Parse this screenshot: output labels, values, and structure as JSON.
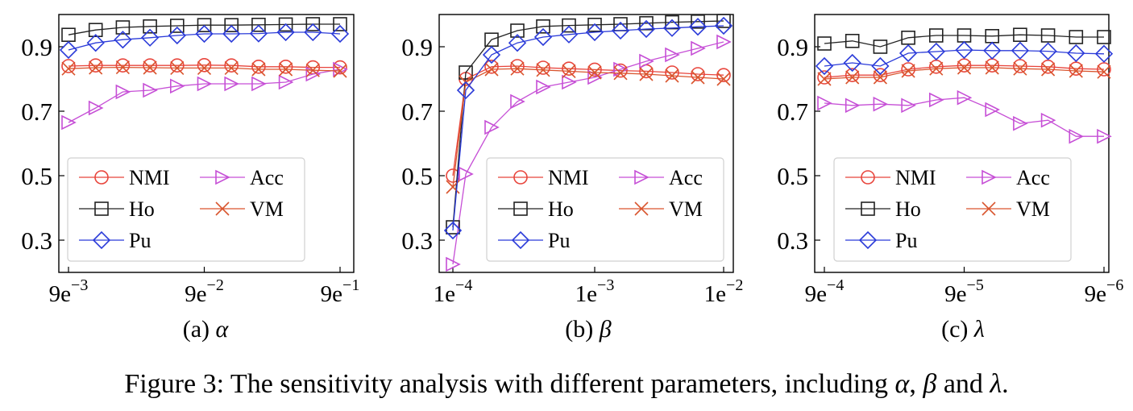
{
  "figure_caption": {
    "prefix": "Figure 3: The sensitivity analysis with different parameters, including ",
    "symbols": [
      "α",
      "β",
      "λ"
    ],
    "sep1": ", ",
    "sep2": " and ",
    "suffix": "."
  },
  "subplots": [
    {
      "label": "(a) ",
      "symbol": "α"
    },
    {
      "label": "(b) ",
      "symbol": "β"
    },
    {
      "label": "(c) ",
      "symbol": "λ"
    }
  ],
  "colors": {
    "NMI": "#e8453c",
    "Acc": "#c64fd6",
    "Ho": "#222222",
    "VM": "#d9552e",
    "Pu": "#2b3bd9"
  },
  "chart_data": [
    {
      "type": "line",
      "xticks": [
        {
          "base": "9e",
          "exp": "−3"
        },
        {
          "base": "9e",
          "exp": "−2"
        },
        {
          "base": "9e",
          "exp": "−1"
        }
      ],
      "xtick_index": [
        0,
        5,
        10
      ],
      "x": [
        0,
        1,
        2,
        3,
        4,
        5,
        6,
        7,
        8,
        9,
        10
      ],
      "ylim": [
        0.2,
        1.0
      ],
      "yticks": [
        "0.3",
        "0.5",
        "0.7",
        "0.9"
      ],
      "ytick_values": [
        0.3,
        0.5,
        0.7,
        0.9
      ],
      "legend": [
        [
          "NMI",
          "Acc"
        ],
        [
          "Ho",
          "VM"
        ],
        [
          "Pu"
        ]
      ],
      "legend_placement": "lower-left",
      "series": [
        {
          "name": "NMI",
          "marker": "circle",
          "values": [
            0.84,
            0.842,
            0.842,
            0.842,
            0.842,
            0.843,
            0.842,
            0.838,
            0.838,
            0.836,
            0.836
          ]
        },
        {
          "name": "Acc",
          "marker": "triangle-right",
          "values": [
            0.665,
            0.71,
            0.76,
            0.765,
            0.778,
            0.785,
            0.785,
            0.785,
            0.79,
            0.815,
            0.83
          ]
        },
        {
          "name": "Ho",
          "marker": "square",
          "values": [
            0.937,
            0.952,
            0.96,
            0.963,
            0.965,
            0.967,
            0.967,
            0.968,
            0.969,
            0.97,
            0.97
          ]
        },
        {
          "name": "VM",
          "marker": "x",
          "values": [
            0.832,
            0.835,
            0.836,
            0.835,
            0.834,
            0.834,
            0.834,
            0.83,
            0.83,
            0.827,
            0.825
          ]
        },
        {
          "name": "Pu",
          "marker": "diamond",
          "values": [
            0.89,
            0.912,
            0.922,
            0.928,
            0.935,
            0.94,
            0.94,
            0.941,
            0.945,
            0.945,
            0.94
          ]
        }
      ]
    },
    {
      "type": "line",
      "xticks": [
        {
          "base": "1e",
          "exp": "−4"
        },
        {
          "base": "1e",
          "exp": "−3"
        },
        {
          "base": "1e",
          "exp": "−2"
        }
      ],
      "xtick_index": [
        0,
        5.5,
        10.5
      ],
      "x": [
        0,
        0.5,
        1.5,
        2.5,
        3.5,
        4.5,
        5.5,
        6.5,
        7.5,
        8.5,
        9.5,
        10.5
      ],
      "ylim": [
        0.2,
        1.0
      ],
      "yticks": [
        "0.3",
        "0.5",
        "0.7",
        "0.9"
      ],
      "ytick_values": [
        0.3,
        0.5,
        0.7,
        0.9
      ],
      "legend": [
        [
          "NMI",
          "Acc"
        ],
        [
          "Ho",
          "VM"
        ],
        [
          "Pu"
        ]
      ],
      "legend_placement": "lower-right",
      "series": [
        {
          "name": "NMI",
          "marker": "circle",
          "values": [
            0.5,
            0.8,
            0.838,
            0.84,
            0.835,
            0.832,
            0.829,
            0.826,
            0.824,
            0.82,
            0.815,
            0.812
          ]
        },
        {
          "name": "Acc",
          "marker": "triangle-right",
          "values": [
            0.225,
            0.505,
            0.65,
            0.73,
            0.775,
            0.79,
            0.805,
            0.83,
            0.855,
            0.875,
            0.895,
            0.915
          ]
        },
        {
          "name": "Ho",
          "marker": "square",
          "values": [
            0.34,
            0.82,
            0.922,
            0.95,
            0.963,
            0.966,
            0.968,
            0.97,
            0.973,
            0.976,
            0.978,
            0.98
          ]
        },
        {
          "name": "VM",
          "marker": "x",
          "values": [
            0.465,
            0.79,
            0.83,
            0.832,
            0.828,
            0.824,
            0.82,
            0.818,
            0.815,
            0.81,
            0.805,
            0.8
          ]
        },
        {
          "name": "Pu",
          "marker": "diamond",
          "values": [
            0.33,
            0.765,
            0.875,
            0.912,
            0.93,
            0.938,
            0.945,
            0.95,
            0.955,
            0.958,
            0.962,
            0.965
          ]
        }
      ]
    },
    {
      "type": "line",
      "xticks": [
        {
          "base": "9e",
          "exp": "−4"
        },
        {
          "base": "9e",
          "exp": "−5"
        },
        {
          "base": "9e",
          "exp": "−6"
        }
      ],
      "xtick_index": [
        0,
        5,
        10
      ],
      "x": [
        0,
        1,
        2,
        3,
        4,
        5,
        6,
        7,
        8,
        9,
        10
      ],
      "ylim": [
        0.2,
        1.0
      ],
      "yticks": [
        "0.3",
        "0.5",
        "0.7",
        "0.9"
      ],
      "ytick_values": [
        0.3,
        0.5,
        0.7,
        0.9
      ],
      "legend": [
        [
          "NMI",
          "Acc"
        ],
        [
          "Ho",
          "VM"
        ],
        [
          "Pu"
        ]
      ],
      "legend_placement": "lower-left",
      "series": [
        {
          "name": "NMI",
          "marker": "circle",
          "values": [
            0.805,
            0.812,
            0.812,
            0.83,
            0.838,
            0.842,
            0.842,
            0.84,
            0.838,
            0.832,
            0.83
          ]
        },
        {
          "name": "Acc",
          "marker": "triangle-right",
          "values": [
            0.725,
            0.718,
            0.722,
            0.718,
            0.735,
            0.742,
            0.705,
            0.662,
            0.672,
            0.622,
            0.622
          ]
        },
        {
          "name": "Ho",
          "marker": "square",
          "values": [
            0.91,
            0.918,
            0.9,
            0.928,
            0.935,
            0.935,
            0.933,
            0.937,
            0.935,
            0.93,
            0.93
          ]
        },
        {
          "name": "VM",
          "marker": "x",
          "values": [
            0.8,
            0.805,
            0.805,
            0.825,
            0.832,
            0.835,
            0.835,
            0.832,
            0.83,
            0.825,
            0.822
          ]
        },
        {
          "name": "Pu",
          "marker": "diamond",
          "values": [
            0.84,
            0.85,
            0.84,
            0.88,
            0.885,
            0.89,
            0.888,
            0.888,
            0.886,
            0.88,
            0.878
          ]
        }
      ]
    }
  ]
}
